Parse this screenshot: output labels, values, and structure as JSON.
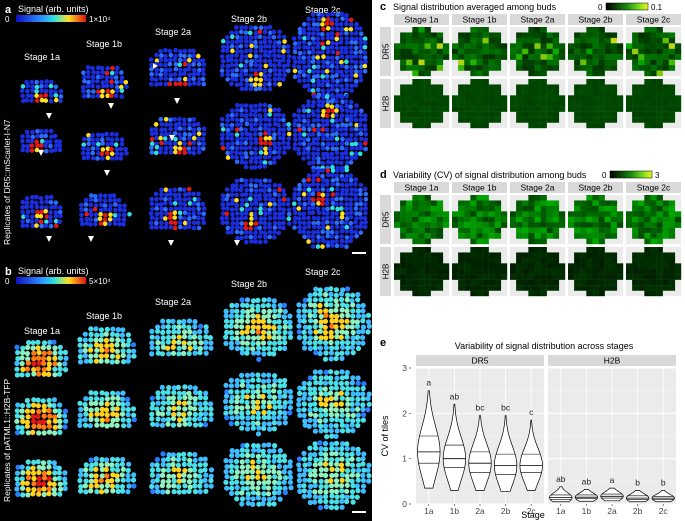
{
  "panel_a": {
    "letter": "a",
    "colorbar_title": "Signal (arb. units)",
    "colorbar_min": "0",
    "colorbar_max": "1×10⁴",
    "y_title": "Replicates of DR5::mScarlet-I-N7",
    "stages": [
      "Stage 1a",
      "Stage 1b",
      "Stage 2a",
      "Stage 2b",
      "Stage 2c"
    ],
    "palette": [
      "#1a2ee0",
      "#1f49f0",
      "#2b6bff",
      "#2fe0e0",
      "#ffe020",
      "#e01818"
    ]
  },
  "panel_b": {
    "letter": "b",
    "colorbar_title": "Signal (arb. units)",
    "colorbar_min": "0",
    "colorbar_max": "5×10⁴",
    "y_title": "Replicates of pATML1::H2B-TFP",
    "stages": [
      "Stage 1a",
      "Stage 1b",
      "Stage 2a",
      "Stage 2b",
      "Stage 2c"
    ],
    "palette": [
      "#2a7dff",
      "#3fbcff",
      "#49e0e8",
      "#8ff0c0",
      "#ffd21e",
      "#ff7a14",
      "#e01818"
    ]
  },
  "panel_c": {
    "letter": "c",
    "title": "Signal distribution averaged among buds",
    "colorbar_min": "0",
    "colorbar_max": "0.1",
    "stages": [
      "Stage 1a",
      "Stage 1b",
      "Stage 2a",
      "Stage 2b",
      "Stage 2c"
    ],
    "rows": [
      "DR5",
      "H2B"
    ]
  },
  "panel_d": {
    "letter": "d",
    "title": "Variability (CV) of signal distribution among buds",
    "colorbar_min": "0",
    "colorbar_max": "3",
    "stages": [
      "Stage 1a",
      "Stage 1b",
      "Stage 2a",
      "Stage 2b",
      "Stage 2c"
    ],
    "rows": [
      "DR5",
      "H2B"
    ]
  },
  "chart_data": {
    "type": "violin",
    "letter": "e",
    "title": "Variability of signal distribution across stages",
    "xlabel": "Stage",
    "ylabel": "CV of tiles",
    "ylim": [
      0,
      3
    ],
    "yticks": [
      "0",
      "1",
      "2",
      "3"
    ],
    "categories": [
      "1a",
      "1b",
      "2a",
      "2b",
      "2c"
    ],
    "facets": [
      {
        "name": "DR5",
        "letters": [
          "a",
          "ab",
          "bc",
          "bc",
          "c"
        ],
        "min": [
          0.35,
          0.3,
          0.3,
          0.28,
          0.3
        ],
        "max": [
          2.5,
          2.2,
          1.95,
          1.95,
          1.85
        ],
        "q1": [
          0.9,
          0.8,
          0.7,
          0.65,
          0.7
        ],
        "median": [
          1.15,
          1.0,
          0.9,
          0.85,
          0.85
        ],
        "q3": [
          1.5,
          1.3,
          1.15,
          1.1,
          1.1
        ]
      },
      {
        "name": "H2B",
        "letters": [
          "ab",
          "ab",
          "a",
          "b",
          "b"
        ],
        "min": [
          0.05,
          0.06,
          0.07,
          0.05,
          0.05
        ],
        "max": [
          0.38,
          0.32,
          0.35,
          0.3,
          0.3
        ],
        "q1": [
          0.1,
          0.12,
          0.13,
          0.1,
          0.1
        ],
        "median": [
          0.14,
          0.15,
          0.17,
          0.13,
          0.13
        ],
        "q3": [
          0.2,
          0.2,
          0.22,
          0.18,
          0.17
        ]
      }
    ]
  }
}
